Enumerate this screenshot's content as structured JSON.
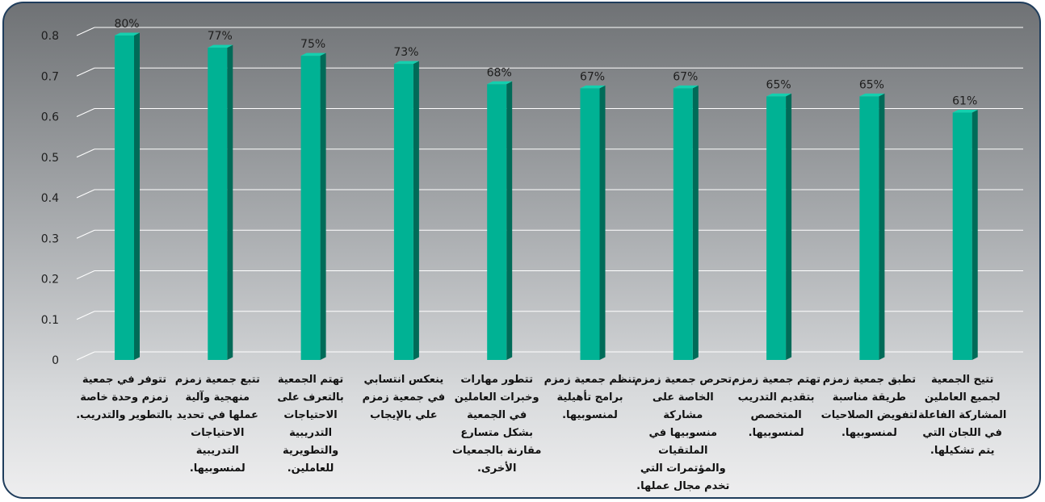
{
  "chart_data": {
    "type": "bar",
    "categories": [
      "تتوفر في جمعية زمزم وحدة خاصة بالتطوير والتدريب.",
      "تتبع جمعية زمزم منهجية وآلية عملها في تحديد الاحتياجات التدريبية لمنسوبيها.",
      "تهتم الجمعية بالتعرف على الاحتياجات التدريبية والتطويرية للعاملين.",
      "ينعكس انتسابي في جمعية زمزم علي بالإيجاب",
      "تتطور مهارات وخبرات العاملين في الجمعية بشكل متسارع مقارنة بالجمعيات الأخرى.",
      "تنظم جمعية زمزم برامج تأهيلية لمنسوبيها.",
      "تحرص جمعية زمزم الخاصة على مشاركة منسوبيها في الملتقيات والمؤتمرات التي تخدم مجال عملها.",
      "تهتم جمعية زمزم بتقديم التدريب المتخصص لمنسوبيها.",
      "تطبق جمعية زمزم طريقة مناسبة لتفويض الصلاحيات لمنسوبيها.",
      "تتيح الجمعية لجميع العاملين المشاركة الفاعلة في اللجان التي يتم تشكيلها."
    ],
    "category_lines": [
      [
        "تتوفر في جمعية",
        "زمزم وحدة خاصة",
        "بالتطوير والتدريب."
      ],
      [
        "تتبع جمعية زمزم",
        "منهجية وآلية",
        "عملها في تحديد",
        "الاحتياجات",
        "التدريبية",
        "لمنسوبيها."
      ],
      [
        "تهتم الجمعية",
        "بالتعرف على",
        "الاحتياجات",
        "التدريبية",
        "والتطويرية",
        "للعاملين."
      ],
      [
        "ينعكس انتسابي",
        "في جمعية زمزم",
        "علي بالإيجاب"
      ],
      [
        "تتطور مهارات",
        "وخبرات العاملين",
        "في الجمعية",
        "بشكل متسارع",
        "مقارنة بالجمعيات",
        "الأخرى."
      ],
      [
        "تنظم جمعية زمزم",
        "برامج تأهيلية",
        "لمنسوبيها."
      ],
      [
        "تحرص جمعية زمزم",
        "الخاصة على",
        "مشاركة",
        "منسوبيها في",
        "الملتقيات",
        "والمؤتمرات التي",
        "تخدم مجال عملها."
      ],
      [
        "تهتم جمعية زمزم",
        "بتقديم التدريب",
        "المتخصص",
        "لمنسوبيها."
      ],
      [
        "تطبق جمعية زمزم",
        "طريقة مناسبة",
        "لتفويض الصلاحيات",
        "لمنسوبيها."
      ],
      [
        "تتيح الجمعية",
        "لجميع العاملين",
        "المشاركة الفاعلة",
        "في اللجان التي",
        "يتم تشكيلها."
      ]
    ],
    "values": [
      0.8,
      0.77,
      0.75,
      0.73,
      0.68,
      0.67,
      0.67,
      0.65,
      0.65,
      0.61
    ],
    "data_labels": [
      "80%",
      "77%",
      "75%",
      "73%",
      "68%",
      "67%",
      "67%",
      "65%",
      "65%",
      "61%"
    ],
    "yticks": [
      "0",
      "0.1",
      "0.2",
      "0.3",
      "0.4",
      "0.5",
      "0.6",
      "0.7",
      "0.8"
    ],
    "ylim": [
      0,
      0.8
    ],
    "grid": true,
    "colors": {
      "bar_front": "#00b294",
      "bar_side": "#006b58",
      "bar_top": "#14cfae",
      "grid": "#ffffff"
    }
  }
}
